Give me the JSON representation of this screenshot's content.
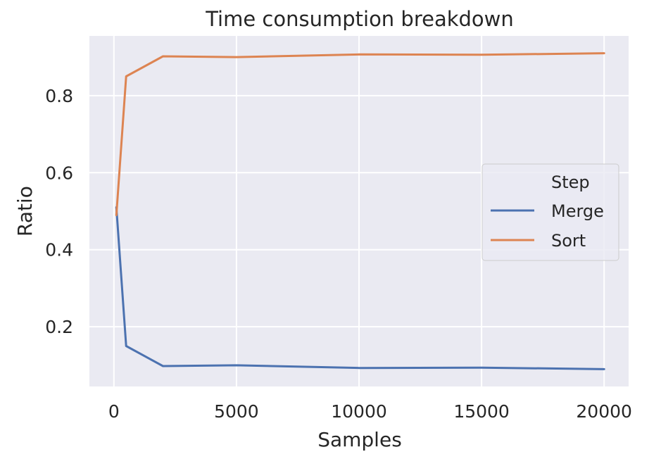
{
  "chart_data": {
    "type": "line",
    "title": "Time consumption breakdown",
    "xlabel": "Samples",
    "ylabel": "Ratio",
    "xlim": [
      -1000,
      21000
    ],
    "ylim": [
      0.045,
      0.955
    ],
    "xticks": [
      0,
      5000,
      10000,
      15000,
      20000
    ],
    "xtick_labels": [
      "0",
      "5000",
      "10000",
      "15000",
      "20000"
    ],
    "yticks": [
      0.2,
      0.4,
      0.6,
      0.8
    ],
    "ytick_labels": [
      "0.2",
      "0.4",
      "0.6",
      "0.8"
    ],
    "grid": true,
    "legend_title": "Step",
    "legend_location": "center-right",
    "series": [
      {
        "name": "Merge",
        "color": "#4c72b0",
        "x": [
          100,
          500,
          2000,
          5000,
          10000,
          15000,
          20000
        ],
        "y": [
          0.51,
          0.15,
          0.098,
          0.1,
          0.093,
          0.094,
          0.09
        ]
      },
      {
        "name": "Sort",
        "color": "#dd8452",
        "x": [
          100,
          500,
          2000,
          5000,
          10000,
          15000,
          20000
        ],
        "y": [
          0.49,
          0.85,
          0.902,
          0.9,
          0.907,
          0.906,
          0.91
        ]
      }
    ],
    "plot_background": "#eaeaf2",
    "grid_color": "#ffffff"
  }
}
